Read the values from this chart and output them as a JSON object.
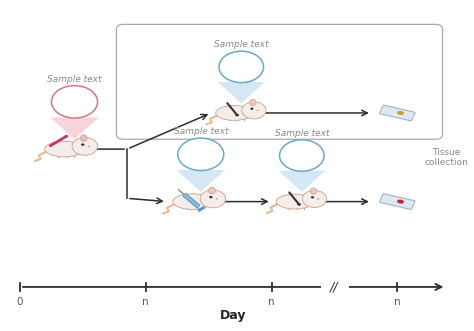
{
  "bg_color": "#ffffff",
  "sample_text": "Sample text",
  "tissue_collection": "Tissue\ncollection",
  "day_label": "Day",
  "timeline_ticks": [
    "0",
    "n",
    "n",
    "n"
  ],
  "arrow_color": "#2d2d2d",
  "pink_cone_color": "#f2b8c6",
  "pink_circle_edge": "#d4758a",
  "blue_cone_color": "#b8d8ed",
  "blue_circle_edge": "#6aaac8",
  "text_color": "#888888",
  "mouse_body": "#f5ede8",
  "mouse_edge": "#c8a090",
  "mouse_ear": "#f0c8b8",
  "mouse_ear_pink": "#ecb8c8",
  "tail_color": "#e8b898",
  "slide_face": "#dde8f4",
  "slide_edge": "#9ab8cc",
  "slide_dot_yellow": "#cc9922",
  "slide_dot_red": "#cc2222",
  "rect_edge": "#aaaaaa"
}
